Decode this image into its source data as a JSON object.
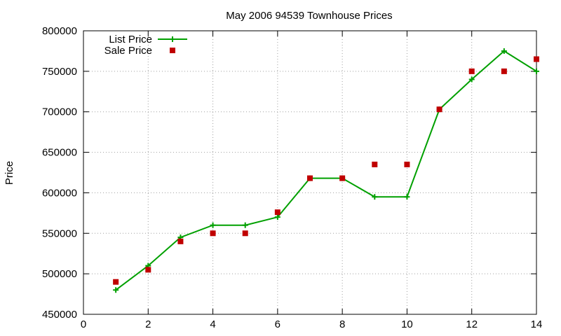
{
  "chart_data": {
    "type": "line",
    "title": "May 2006 94539 Townhouse Prices",
    "xlabel": "",
    "ylabel": "Price",
    "xlim": [
      0,
      14
    ],
    "ylim": [
      450000,
      800000
    ],
    "x_ticks": [
      0,
      2,
      4,
      6,
      8,
      10,
      12,
      14
    ],
    "y_ticks": [
      450000,
      500000,
      550000,
      600000,
      650000,
      700000,
      750000,
      800000
    ],
    "grid": true,
    "legend_position": "top-left",
    "series": [
      {
        "name": "List Price",
        "style": "linespoints",
        "marker": "plus",
        "color": "#00a000",
        "x": [
          1,
          2,
          3,
          4,
          5,
          6,
          7,
          8,
          9,
          10,
          11,
          12,
          13,
          14
        ],
        "y": [
          480000,
          510000,
          545000,
          560000,
          560000,
          570000,
          618000,
          618000,
          595000,
          595000,
          703000,
          740000,
          775000,
          750000
        ]
      },
      {
        "name": "Sale Price",
        "style": "points",
        "marker": "square",
        "color": "#c00000",
        "x": [
          1,
          2,
          3,
          4,
          5,
          6,
          7,
          8,
          9,
          10,
          11,
          12,
          13,
          14
        ],
        "y": [
          490000,
          505000,
          540000,
          550000,
          550000,
          576000,
          618000,
          618000,
          635000,
          635000,
          703000,
          750000,
          750000,
          765000
        ]
      }
    ]
  }
}
